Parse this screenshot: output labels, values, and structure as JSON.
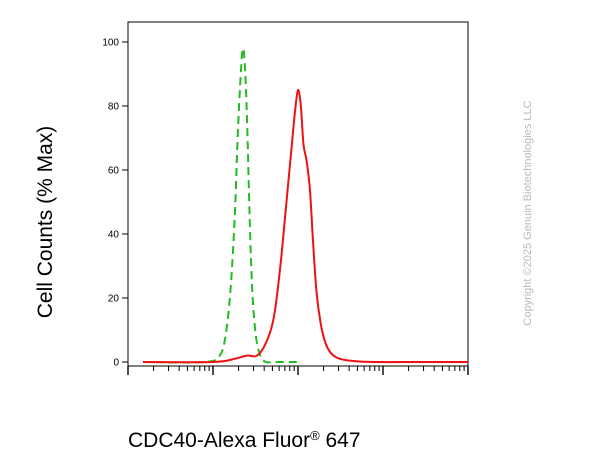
{
  "chart_data": {
    "type": "line",
    "title": "",
    "xlabel": {
      "text": "CDC40-Alexa Fluor",
      "mark": "®",
      "suffix": " 647"
    },
    "ylabel": "Cell Counts (% Max)",
    "ylim": [
      0,
      100
    ],
    "yticks": [
      0,
      20,
      40,
      60,
      80,
      100
    ],
    "x_scale": "log",
    "xlim": [
      10,
      100000
    ],
    "x_tick_labels_shown": false,
    "grid": false,
    "legend": null,
    "series": [
      {
        "color": "#22bb22",
        "style": "dashed",
        "x": [
          15,
          80,
          120,
          140,
          160,
          180,
          195,
          210,
          225,
          240,
          255,
          270,
          290,
          320,
          360,
          420,
          600,
          1000
        ],
        "y": [
          0,
          0,
          2,
          8,
          22,
          45,
          70,
          88,
          98,
          90,
          70,
          45,
          22,
          8,
          2,
          0,
          0,
          0
        ]
      },
      {
        "color": "#ee1111",
        "style": "solid",
        "x": [
          15,
          100,
          180,
          250,
          330,
          420,
          520,
          620,
          720,
          820,
          920,
          1000,
          1080,
          1160,
          1260,
          1380,
          1500,
          1650,
          1850,
          2100,
          2400,
          2800,
          3300,
          4500,
          8000,
          30000,
          100000
        ],
        "y": [
          0,
          0,
          1,
          2,
          2,
          6,
          14,
          30,
          48,
          64,
          78,
          85,
          80,
          68,
          63,
          54,
          38,
          22,
          12,
          6,
          3,
          1.5,
          0.8,
          0.3,
          0,
          0,
          0
        ]
      }
    ]
  },
  "watermark": "Copyright ©2025 Genuin Biotechnologies LLC"
}
